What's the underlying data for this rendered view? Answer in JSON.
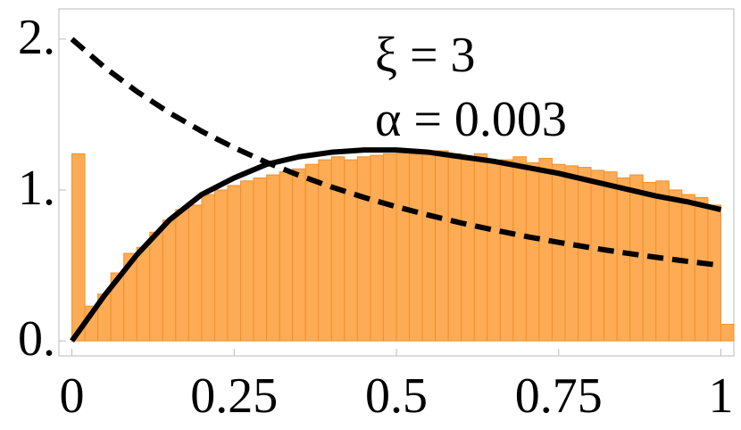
{
  "chart_data": {
    "type": "histogram",
    "bins": [
      0,
      0.02,
      0.04,
      0.06,
      0.08,
      0.1,
      0.12,
      0.14,
      0.16,
      0.18,
      0.2,
      0.22,
      0.24,
      0.26,
      0.28,
      0.3,
      0.32,
      0.34,
      0.36,
      0.38,
      0.4,
      0.42,
      0.44,
      0.46,
      0.48,
      0.5,
      0.52,
      0.54,
      0.56,
      0.58,
      0.6,
      0.62,
      0.64,
      0.66,
      0.68,
      0.7,
      0.72,
      0.74,
      0.76,
      0.78,
      0.8,
      0.82,
      0.84,
      0.86,
      0.88,
      0.9,
      0.92,
      0.94,
      0.96,
      0.98,
      1.0,
      1.02
    ],
    "values": [
      1.24,
      0.23,
      0.31,
      0.45,
      0.58,
      0.62,
      0.72,
      0.8,
      0.87,
      0.9,
      0.97,
      1.0,
      1.03,
      1.06,
      1.08,
      1.1,
      1.12,
      1.14,
      1.17,
      1.2,
      1.22,
      1.2,
      1.22,
      1.23,
      1.24,
      1.25,
      1.24,
      1.25,
      1.26,
      1.24,
      1.2,
      1.24,
      1.18,
      1.2,
      1.22,
      1.18,
      1.21,
      1.17,
      1.16,
      1.15,
      1.13,
      1.12,
      1.08,
      1.1,
      1.05,
      1.06,
      1.0,
      0.97,
      0.95,
      0.9,
      0.11
    ],
    "color": "#fdab55",
    "edge_color": "#f0902c",
    "lines": [
      {
        "color": "#000000",
        "style": "solid",
        "x": [
          0,
          0.05,
          0.1,
          0.15,
          0.2,
          0.25,
          0.3,
          0.35,
          0.4,
          0.45,
          0.5,
          0.55,
          0.6,
          0.65,
          0.7,
          0.75,
          0.8,
          0.85,
          0.9,
          0.95,
          1
        ],
        "values": [
          0,
          0.3,
          0.57,
          0.8,
          0.97,
          1.08,
          1.17,
          1.22,
          1.25,
          1.265,
          1.265,
          1.25,
          1.22,
          1.19,
          1.15,
          1.11,
          1.06,
          1.01,
          0.96,
          0.92,
          0.87
        ]
      },
      {
        "color": "#000000",
        "style": "dashed",
        "x": [
          0,
          0.05,
          0.1,
          0.15,
          0.2,
          0.25,
          0.3,
          0.35,
          0.4,
          0.45,
          0.5,
          0.55,
          0.6,
          0.65,
          0.7,
          0.75,
          0.8,
          0.85,
          0.9,
          0.95,
          1
        ],
        "values": [
          2,
          1.814,
          1.653,
          1.512,
          1.389,
          1.28,
          1.183,
          1.097,
          1.02,
          0.951,
          0.889,
          0.833,
          0.781,
          0.735,
          0.692,
          0.653,
          0.617,
          0.584,
          0.554,
          0.526,
          0.5
        ]
      }
    ],
    "annotations": [
      "ξ = 3",
      "α = 0.003"
    ],
    "xlim": [
      -0.02,
      1.02
    ],
    "ylim": [
      -0.1,
      2.2
    ],
    "xticks": [
      0,
      0.25,
      0.5,
      0.75,
      1
    ],
    "yticks": [
      {
        "value": 0,
        "label": "0."
      },
      {
        "value": 1,
        "label": "1."
      },
      {
        "value": 2,
        "label": "2."
      }
    ]
  }
}
